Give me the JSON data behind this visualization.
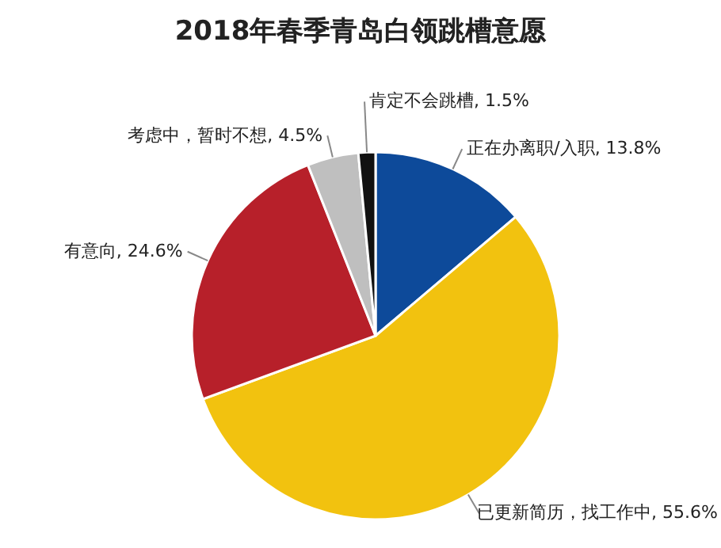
{
  "chart_data": {
    "type": "pie",
    "title": "2018年春季青岛白领跳槽意愿",
    "categories": [
      "正在办离职/入职",
      "已更新简历，找工作中",
      "有意向",
      "考虑中，暂时不想",
      "肯定不会跳槽"
    ],
    "values": [
      13.8,
      55.6,
      24.6,
      4.5,
      1.5
    ],
    "value_labels": [
      "13.8%",
      "55.6%",
      "24.6%",
      "4.5%",
      "1.5%"
    ],
    "colors": [
      "#0d4a9a",
      "#f2c20f",
      "#b7202a",
      "#bfbfbf",
      "#111111"
    ]
  }
}
